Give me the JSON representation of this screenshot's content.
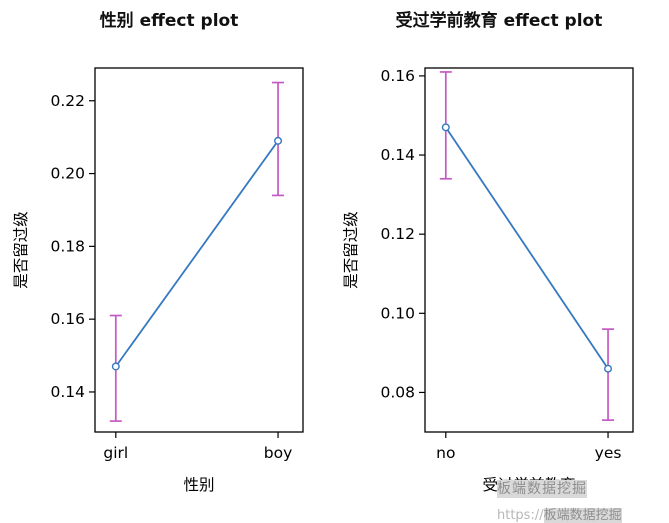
{
  "chart_data": [
    {
      "type": "line",
      "title": "性别 effect plot",
      "xlabel": "性别",
      "ylabel": "是否留过级",
      "categories": [
        "girl",
        "boy"
      ],
      "values": [
        0.147,
        0.209
      ],
      "ci_lower": [
        0.132,
        0.194
      ],
      "ci_upper": [
        0.161,
        0.225
      ],
      "yticks": [
        0.14,
        0.16,
        0.18,
        0.2,
        0.22
      ],
      "ylim": [
        0.129,
        0.229
      ],
      "grid": false,
      "legend": false
    },
    {
      "type": "line",
      "title": "受过学前教育 effect plot",
      "xlabel": "受过学前教育",
      "ylabel": "是否留过级",
      "categories": [
        "no",
        "yes"
      ],
      "values": [
        0.147,
        0.086
      ],
      "ci_lower": [
        0.134,
        0.073
      ],
      "ci_upper": [
        0.161,
        0.096
      ],
      "yticks": [
        0.08,
        0.1,
        0.12,
        0.14,
        0.16
      ],
      "ylim": [
        0.07,
        0.162
      ],
      "grid": false,
      "legend": false
    }
  ],
  "style": {
    "line_color": "#3579c0",
    "ci_color": "#c45ac4",
    "point_fill": "#ffffff",
    "axis_color": "#000000",
    "title_color": "#111111"
  },
  "watermark": {
    "highlight_text": "板端数据挖掘",
    "url_text": "https://"
  }
}
